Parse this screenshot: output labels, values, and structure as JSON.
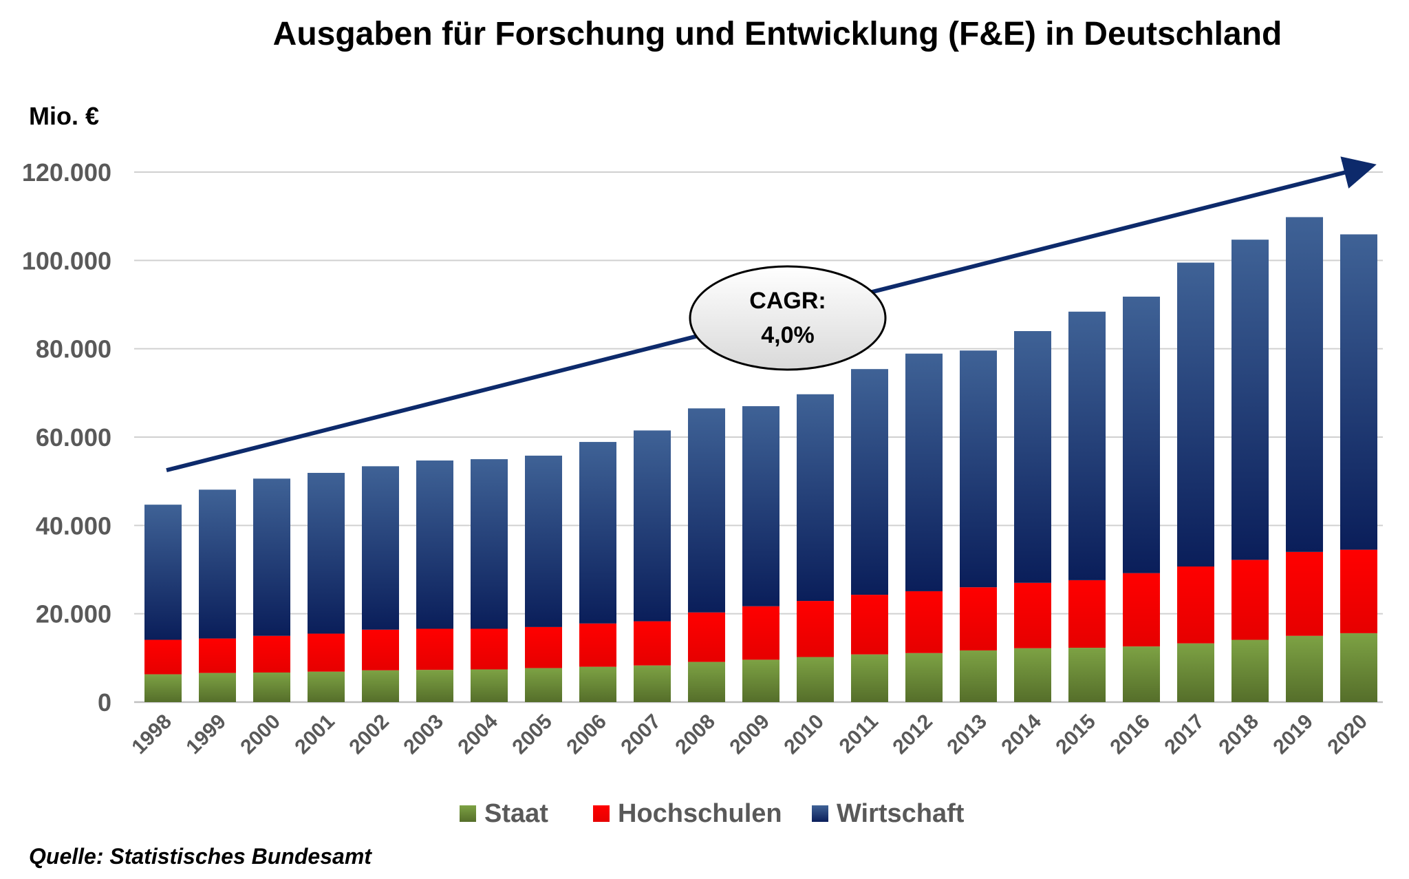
{
  "chart_data": {
    "type": "bar",
    "stacked": true,
    "title": "Ausgaben für Forschung und Entwicklung (F&E) in Deutschland",
    "ylabel": "Mio. €",
    "xlabel": "",
    "ylim": [
      0,
      120000
    ],
    "yticks": [
      "0",
      "20.000",
      "40.000",
      "60.000",
      "80.000",
      "100.000",
      "120.000"
    ],
    "ytick_values": [
      0,
      20000,
      40000,
      60000,
      80000,
      100000,
      120000
    ],
    "grid": true,
    "legend_position": "bottom",
    "categories": [
      "1998",
      "1999",
      "2000",
      "2001",
      "2002",
      "2003",
      "2004",
      "2005",
      "2006",
      "2007",
      "2008",
      "2009",
      "2010",
      "2011",
      "2012",
      "2013",
      "2014",
      "2015",
      "2016",
      "2017",
      "2018",
      "2019",
      "2020"
    ],
    "series": [
      {
        "name": "Staat",
        "color": "#6e8f3a",
        "values": [
          6300,
          6600,
          6700,
          6900,
          7200,
          7300,
          7400,
          7700,
          8000,
          8300,
          9100,
          9600,
          10200,
          10800,
          11100,
          11700,
          12200,
          12300,
          12600,
          13300,
          14100,
          15000,
          15600
        ]
      },
      {
        "name": "Hochschulen",
        "color": "#ff0000",
        "values": [
          7800,
          7800,
          8300,
          8600,
          9200,
          9300,
          9200,
          9300,
          9800,
          10000,
          11200,
          12100,
          12700,
          13500,
          14000,
          14300,
          14800,
          15300,
          16600,
          17400,
          18100,
          19000,
          18900
        ]
      },
      {
        "name": "Wirtschaft",
        "color": "#1f3f7a",
        "values": [
          30600,
          33700,
          35600,
          36400,
          37000,
          38100,
          38400,
          38800,
          41100,
          43200,
          46200,
          45300,
          46800,
          51100,
          53800,
          53600,
          57000,
          60800,
          62600,
          68800,
          72500,
          75800,
          71400
        ]
      }
    ],
    "trend_arrow": {
      "from_year": "1998",
      "from_value": 52500,
      "to_year": "2020",
      "to_value": 121500,
      "color": "#0d2a6b"
    },
    "annotation": {
      "line1": "CAGR:",
      "line2": "4,0%"
    },
    "source": "Quelle: Statistisches Bundesamt"
  }
}
